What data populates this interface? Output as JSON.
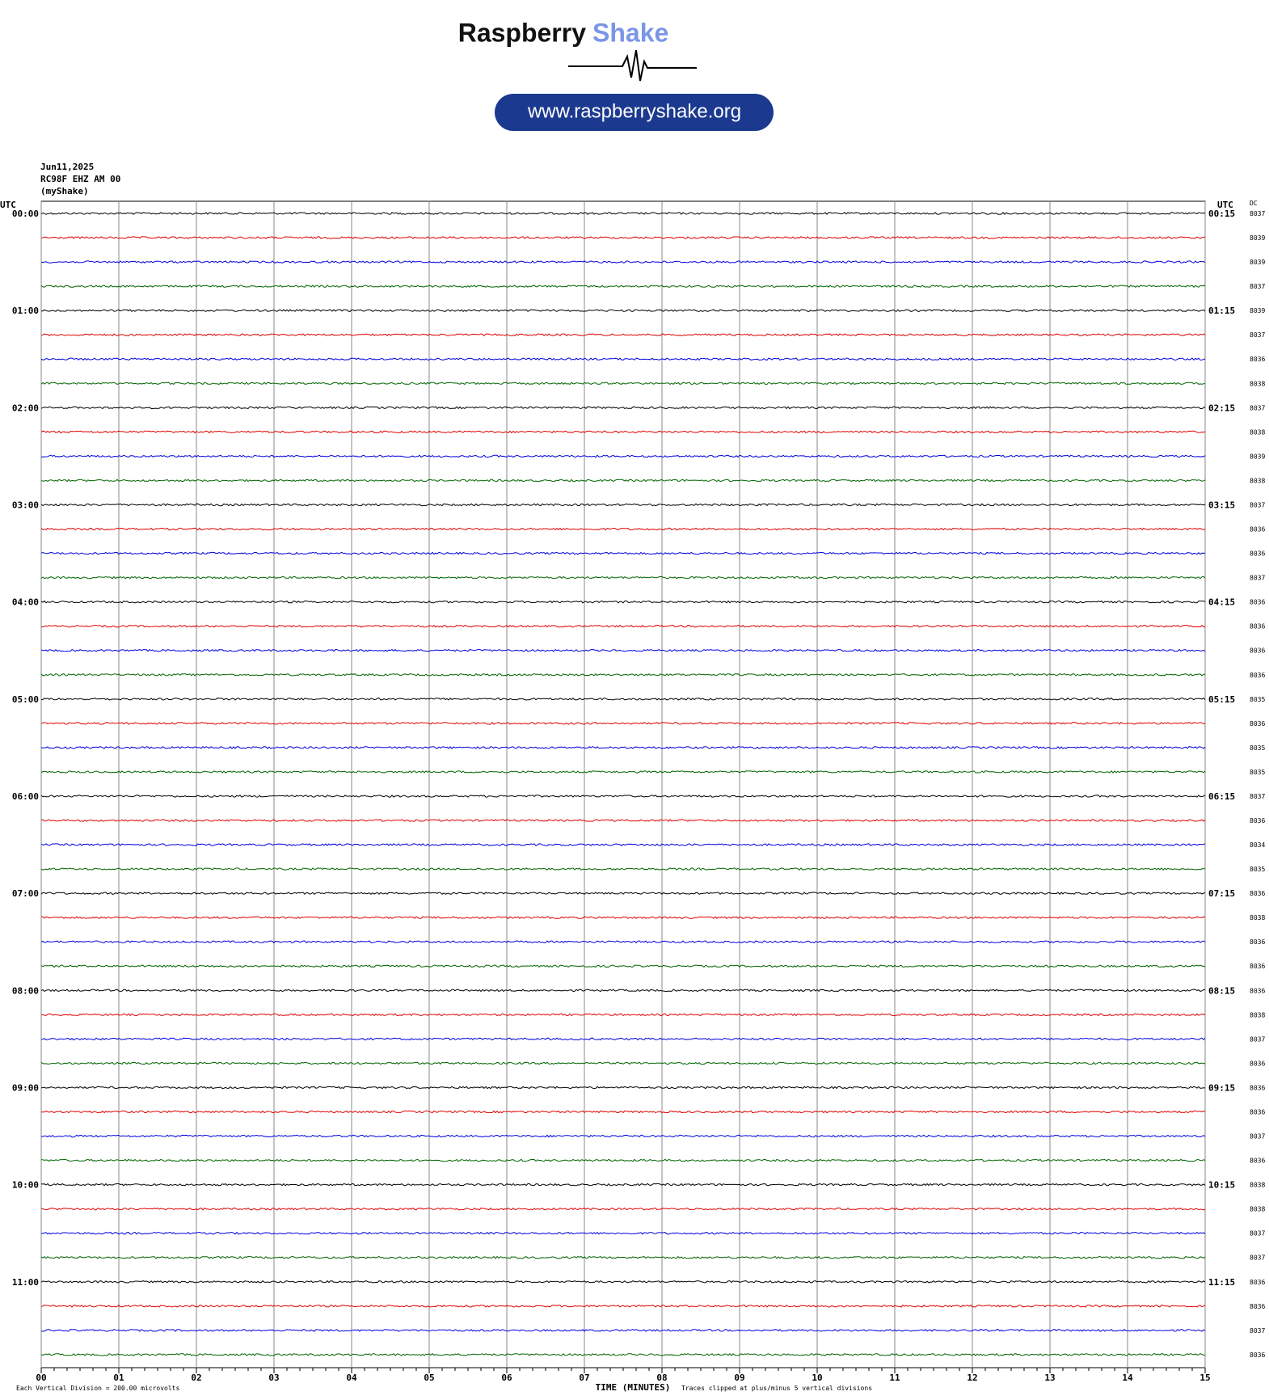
{
  "header": {
    "brand_main": "Raspberry",
    "brand_accent": "Shake",
    "url": "www.raspberryshake.org"
  },
  "info": {
    "date": "Jun11,2025",
    "station": "RC98F EHZ AM 00",
    "source": "(myShake)"
  },
  "axis": {
    "left_unit": "UTC",
    "right_unit": "UTC",
    "dc_label": "DC",
    "x_ticks": [
      "00",
      "01",
      "02",
      "03",
      "04",
      "05",
      "06",
      "07",
      "08",
      "09",
      "10",
      "11",
      "12",
      "13",
      "14",
      "15"
    ],
    "x_label": "TIME (MINUTES)"
  },
  "left_labels": [
    "00:00",
    "01:00",
    "02:00",
    "03:00",
    "04:00",
    "05:00",
    "06:00",
    "07:00",
    "08:00",
    "09:00",
    "10:00",
    "11:00"
  ],
  "right_labels": [
    "00:15",
    "01:15",
    "02:15",
    "03:15",
    "04:15",
    "05:15",
    "06:15",
    "07:15",
    "08:15",
    "09:15",
    "10:15",
    "11:15"
  ],
  "dc": [
    "8037",
    "8039",
    "8039",
    "8037",
    "8039",
    "8037",
    "8036",
    "8038",
    "8037",
    "8038",
    "8039",
    "8038",
    "8037",
    "8036",
    "8036",
    "8037",
    "8036",
    "8036",
    "8036",
    "8036",
    "8035",
    "8036",
    "8035",
    "8035",
    "8037",
    "8036",
    "8034",
    "8035",
    "8036",
    "8038",
    "8036",
    "8036",
    "8036",
    "8038",
    "8037",
    "8036",
    "8036",
    "8036",
    "8037",
    "8036",
    "8038",
    "8038",
    "8037",
    "8037",
    "8036",
    "8036",
    "8037",
    "8036"
  ],
  "footer": {
    "division": "Each Vertical Division =  200.00 microvolts",
    "clipped": "Traces clipped at plus/minus 5 vertical divisions"
  }
}
